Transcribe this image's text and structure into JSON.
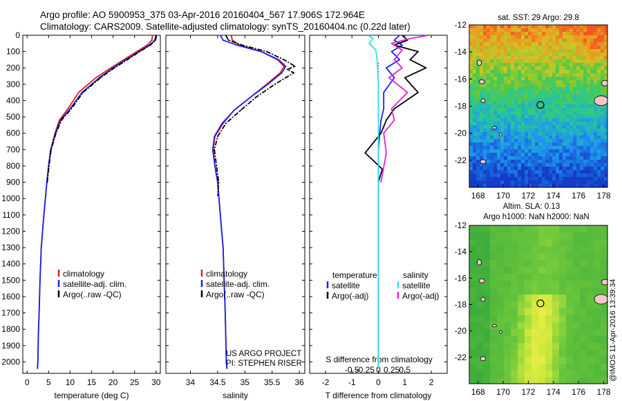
{
  "header": {
    "line1": "Argo profile: AO 5900953_375 03-Apr-2016 20160404_567 17.906S 172.964E",
    "line2": "Climatology: CARS2009. Satellite-adjusted climatology: synTS_20160404.nc (0.22d later)"
  },
  "stamp": "@IMOS 11-Apr-2016 13:39:34",
  "colors": {
    "climatology": "#e8141c",
    "satellite": "#1424e8",
    "argo": "#000000",
    "sal_satellite": "#30e0e8",
    "sal_argo": "#e020d8",
    "marker": "#000000"
  },
  "chart_data": [
    {
      "id": "temperature",
      "type": "line",
      "xlabel": "temperature (deg C)",
      "ylabel": "",
      "xlim": [
        -1,
        31
      ],
      "ylim": [
        2070,
        0
      ],
      "y_reversed": true,
      "xticks": [
        0,
        5,
        10,
        15,
        20,
        25,
        30
      ],
      "yticks": [
        0,
        100,
        200,
        300,
        400,
        500,
        600,
        700,
        800,
        900,
        1000,
        1100,
        1200,
        1300,
        1400,
        1500,
        1600,
        1700,
        1800,
        1900,
        2000
      ],
      "legend": {
        "position": "lower-left",
        "entries": [
          "climatology",
          "satellite-adj. clim.",
          "Argo(..raw -QC)"
        ]
      },
      "series": [
        {
          "name": "climatology",
          "color": "#e8141c",
          "x": [
            29.2,
            29.0,
            28.0,
            25.5,
            22.5,
            19.5,
            16.0,
            12.0,
            9.5,
            7.5,
            6.5,
            5.5,
            5.0,
            4.6,
            3.9,
            3.3,
            3.0,
            2.8,
            2.6,
            2.5,
            2.4
          ],
          "y": [
            0,
            30,
            60,
            100,
            150,
            200,
            260,
            350,
            450,
            520,
            600,
            700,
            800,
            900,
            1100,
            1300,
            1500,
            1700,
            1850,
            2000,
            2040
          ]
        },
        {
          "name": "satellite-adj. clim.",
          "color": "#1424e8",
          "x": [
            30.0,
            29.7,
            28.5,
            26.0,
            23.0,
            20.0,
            16.8,
            12.8,
            10.0,
            7.8,
            6.6,
            5.5,
            5.0,
            4.6,
            3.9,
            3.3,
            3.0,
            2.8,
            2.6,
            2.5,
            2.4
          ],
          "y": [
            0,
            30,
            60,
            100,
            150,
            200,
            260,
            350,
            450,
            520,
            600,
            700,
            800,
            900,
            1100,
            1300,
            1500,
            1700,
            1850,
            2000,
            2040
          ]
        },
        {
          "name": "Argo(..raw -QC)",
          "color": "#000000",
          "x": [
            30.1,
            29.9,
            28.7,
            26.2,
            23.3,
            20.3,
            17.1,
            13.0,
            10.3,
            8.0,
            6.7,
            5.6,
            5.1,
            4.7
          ],
          "y": [
            0,
            30,
            60,
            100,
            150,
            200,
            260,
            350,
            450,
            520,
            600,
            700,
            800,
            900
          ]
        }
      ],
      "annotations": []
    },
    {
      "id": "salinity",
      "type": "line",
      "xlabel": "salinity",
      "ylabel": "",
      "xlim": [
        33.55,
        36.1
      ],
      "ylim": [
        2070,
        0
      ],
      "y_reversed": true,
      "xticks": [
        34,
        34.5,
        35,
        35.5,
        36
      ],
      "legend": {
        "position": "lower-left",
        "entries": [
          "climatology",
          "satellite-adj. clim.",
          "Argo(..raw -QC)"
        ]
      },
      "series": [
        {
          "name": "climatology",
          "color": "#e8141c",
          "x": [
            34.75,
            34.77,
            34.9,
            35.3,
            35.6,
            35.72,
            35.65,
            35.4,
            35.1,
            34.8,
            34.6,
            34.45,
            34.42,
            34.45,
            34.5,
            34.55,
            34.6,
            34.62,
            34.64,
            34.65,
            34.66,
            34.67
          ],
          "y": [
            0,
            30,
            60,
            100,
            150,
            190,
            230,
            300,
            380,
            460,
            540,
            620,
            700,
            800,
            900,
            1100,
            1300,
            1500,
            1700,
            1850,
            2000,
            2040
          ]
        },
        {
          "name": "satellite-adj. clim.",
          "color": "#1424e8",
          "x": [
            34.55,
            34.6,
            34.85,
            35.3,
            35.62,
            35.75,
            35.68,
            35.42,
            35.1,
            34.8,
            34.58,
            34.44,
            34.41,
            34.45,
            34.5,
            34.55,
            34.6,
            34.62,
            34.64,
            34.65,
            34.66,
            34.67
          ],
          "y": [
            0,
            30,
            60,
            100,
            150,
            190,
            230,
            300,
            380,
            460,
            540,
            620,
            700,
            800,
            900,
            1100,
            1300,
            1500,
            1700,
            1850,
            2000,
            2040
          ]
        },
        {
          "name": "Argo(..raw -QC)",
          "color": "#000000",
          "x": [
            34.65,
            34.7,
            34.95,
            35.4,
            35.72,
            35.92,
            35.78,
            35.9,
            35.55,
            35.2,
            34.92,
            34.65,
            34.5,
            34.44,
            34.48,
            34.52,
            34.5
          ],
          "y": [
            0,
            30,
            60,
            100,
            150,
            190,
            210,
            230,
            300,
            380,
            460,
            540,
            620,
            700,
            800,
            900,
            980
          ]
        }
      ],
      "annotations": [
        "US ARGO PROJECT",
        "PI: STEPHEN RISER"
      ]
    },
    {
      "id": "difference",
      "type": "line",
      "xlabel": "T difference from climatology",
      "xlabel_top": "S difference from climatology",
      "xlim": [
        -2.6,
        2.6
      ],
      "ylim": [
        2070,
        0
      ],
      "y_reversed": true,
      "xticks_bottom": [
        -2,
        -1,
        0,
        1,
        2
      ],
      "xticks_top": [
        {
          "v": -1.0,
          "label": "-0.5"
        },
        {
          "v": -0.5,
          "label": "-0.25"
        },
        {
          "v": 0,
          "label": "0"
        },
        {
          "v": 0.5,
          "label": "0.25"
        },
        {
          "v": 1.0,
          "label": "0.5"
        }
      ],
      "legend": {
        "position": "lower-center",
        "headers": [
          "temperature",
          "salinity"
        ],
        "entries": [
          "satellite",
          "Argo(-adj)",
          "satellite",
          "Argo(-adj)"
        ]
      },
      "series": [
        {
          "name": "temperature satellite",
          "color": "#1424e8",
          "x": [
            0.8,
            0.6,
            0.9,
            0.5,
            0.8,
            0.3,
            0.6,
            0.2,
            0.2,
            0.1,
            0.05,
            0,
            0,
            0,
            0
          ],
          "y": [
            0,
            30,
            60,
            100,
            150,
            200,
            260,
            350,
            450,
            520,
            600,
            700,
            900,
            1400,
            2040
          ]
        },
        {
          "name": "temperature Argo(-adj)",
          "color": "#000000",
          "x": [
            0.9,
            1.1,
            0.6,
            1.5,
            1.2,
            1.8,
            1.0,
            1.5,
            0.6,
            0.3,
            0.1,
            -0.5,
            0.15,
            0.0
          ],
          "y": [
            0,
            30,
            60,
            100,
            150,
            200,
            260,
            350,
            450,
            520,
            600,
            720,
            820,
            900
          ]
        },
        {
          "name": "salinity satellite",
          "color": "#30e0e8",
          "x": [
            -0.4,
            -0.2,
            -0.35,
            -0.1,
            -0.05,
            0,
            0,
            0,
            0
          ],
          "y": [
            0,
            20,
            50,
            90,
            150,
            300,
            700,
            1400,
            2040
          ]
        },
        {
          "name": "salinity Argo(-adj)",
          "color": "#e020d8",
          "x": [
            1.9,
            1.2,
            0.5,
            0.9,
            0.6,
            0.9,
            0.4,
            1.1,
            0.5,
            0.6,
            0.2,
            0.3,
            0.1
          ],
          "y": [
            0,
            20,
            50,
            90,
            150,
            200,
            260,
            350,
            450,
            520,
            600,
            720,
            900
          ]
        }
      ],
      "annotations": []
    },
    {
      "id": "sst-map",
      "type": "heatmap",
      "title": "sat. SST: 29 Argo: 29.8",
      "xlim": [
        167.3,
        178.3
      ],
      "ylim": [
        -24,
        -12
      ],
      "xticks": [
        168,
        170,
        172,
        174,
        176,
        178
      ],
      "yticks": [
        -12,
        -14,
        -16,
        -18,
        -20,
        -22
      ],
      "marker": {
        "lon": 172.964,
        "lat": -17.906
      },
      "annotations": []
    },
    {
      "id": "sla-map",
      "type": "heatmap",
      "title": "Altim. SLA: 0.13",
      "subtitle": "Argo h1000: NaN h2000: NaN",
      "xlim": [
        167.3,
        178.3
      ],
      "ylim": [
        -24,
        -12
      ],
      "xticks": [
        168,
        170,
        172,
        174,
        176,
        178
      ],
      "yticks": [
        -12,
        -14,
        -16,
        -18,
        -20,
        -22
      ],
      "marker": {
        "lon": 172.964,
        "lat": -17.906
      },
      "annotations": []
    }
  ]
}
